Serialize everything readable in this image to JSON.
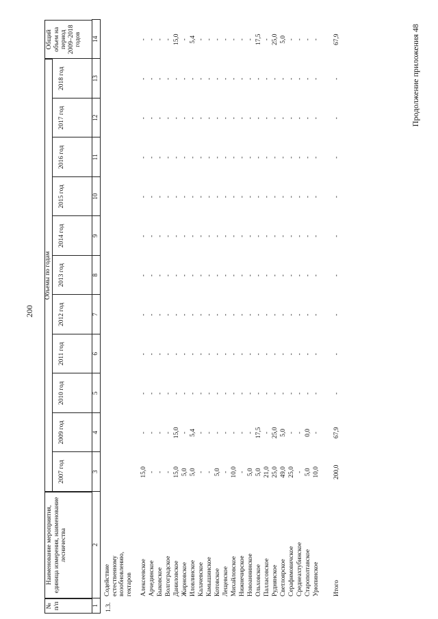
{
  "page_number": "200",
  "caption": "Продолжение приложения 48",
  "table": {
    "header": {
      "no": "№ п/п",
      "name": "Наименование мероприятия, единица измерения, наименование лесничества",
      "group": "Объемы по годам",
      "years": [
        "2007 год",
        "2009 год",
        "2010 год",
        "2011 год",
        "2012 год",
        "2013 год",
        "2014 год",
        "2015 год",
        "2016 год",
        "2017 год",
        "2018 год"
      ],
      "total": "Общий объем на период 2009–2018 годов"
    },
    "column_numbers": [
      "1",
      "2",
      "3",
      "4",
      "5",
      "6",
      "7",
      "8",
      "9",
      "10",
      "11",
      "12",
      "13",
      "14"
    ],
    "section": {
      "no": "1.3.",
      "name": "Содействие естественному возобновлению, гектаров"
    },
    "rows": [
      {
        "name": "Алексеевское",
        "cells": [
          "15,0",
          "-",
          "-",
          "-",
          "-",
          "-",
          "-",
          "-",
          "-",
          "-",
          "-",
          "-"
        ]
      },
      {
        "name": "Арчединское",
        "cells": [
          "-",
          "-",
          "-",
          "-",
          "-",
          "-",
          "-",
          "-",
          "-",
          "-",
          "-",
          "-"
        ]
      },
      {
        "name": "Быковское",
        "cells": [
          "-",
          "-",
          "-",
          "-",
          "-",
          "-",
          "-",
          "-",
          "-",
          "-",
          "-",
          "-"
        ]
      },
      {
        "name": "Волгоградское",
        "cells": [
          "-",
          "-",
          "-",
          "-",
          "-",
          "-",
          "-",
          "-",
          "-",
          "-",
          "-",
          "-"
        ]
      },
      {
        "name": "Даниловское",
        "cells": [
          "15,0",
          "15,0",
          "-",
          "-",
          "-",
          "-",
          "-",
          "-",
          "-",
          "-",
          "-",
          "15,0"
        ]
      },
      {
        "name": "Жирновское",
        "cells": [
          "5,0",
          "-",
          "-",
          "-",
          "-",
          "-",
          "-",
          "-",
          "-",
          "-",
          "-",
          "-"
        ]
      },
      {
        "name": "Иловлинское",
        "cells": [
          "5,0",
          "5,4",
          "-",
          "-",
          "-",
          "-",
          "-",
          "-",
          "-",
          "-",
          "-",
          "5,4"
        ]
      },
      {
        "name": "Калачевское",
        "cells": [
          "-",
          "-",
          "-",
          "-",
          "-",
          "-",
          "-",
          "-",
          "-",
          "-",
          "-",
          "-"
        ]
      },
      {
        "name": "Камышинское",
        "cells": [
          "-",
          "-",
          "-",
          "-",
          "-",
          "-",
          "-",
          "-",
          "-",
          "-",
          "-",
          "-"
        ]
      },
      {
        "name": "Котовское",
        "cells": [
          "5,0",
          "-",
          "-",
          "-",
          "-",
          "-",
          "-",
          "-",
          "-",
          "-",
          "-",
          "-"
        ]
      },
      {
        "name": "Лещевское",
        "cells": [
          "-",
          "-",
          "-",
          "-",
          "-",
          "-",
          "-",
          "-",
          "-",
          "-",
          "-",
          "-"
        ]
      },
      {
        "name": "Михайловское",
        "cells": [
          "10,0",
          "-",
          "-",
          "-",
          "-",
          "-",
          "-",
          "-",
          "-",
          "-",
          "-",
          "-"
        ]
      },
      {
        "name": "Нижнечирское",
        "cells": [
          "-",
          "-",
          "-",
          "-",
          "-",
          "-",
          "-",
          "-",
          "-",
          "-",
          "-",
          "-"
        ]
      },
      {
        "name": "Новоаннинское",
        "cells": [
          "5,0",
          "-",
          "-",
          "-",
          "-",
          "-",
          "-",
          "-",
          "-",
          "-",
          "-",
          "-"
        ]
      },
      {
        "name": "Ольховское",
        "cells": [
          "5,0",
          "17,5",
          "-",
          "-",
          "-",
          "-",
          "-",
          "-",
          "-",
          "-",
          "-",
          "17,5"
        ]
      },
      {
        "name": "Палласовское",
        "cells": [
          "21,0",
          "-",
          "-",
          "-",
          "-",
          "-",
          "-",
          "-",
          "-",
          "-",
          "-",
          "-"
        ]
      },
      {
        "name": "Руднянское",
        "cells": [
          "25,0",
          "25,0",
          "-",
          "-",
          "-",
          "-",
          "-",
          "-",
          "-",
          "-",
          "-",
          "25,0"
        ]
      },
      {
        "name": "Светлоярское",
        "cells": [
          "49,0",
          "5,0",
          "-",
          "-",
          "-",
          "-",
          "-",
          "-",
          "-",
          "-",
          "-",
          "5,0"
        ]
      },
      {
        "name": "Серафимовичское",
        "cells": [
          "25,0",
          "-",
          "-",
          "-",
          "-",
          "-",
          "-",
          "-",
          "-",
          "-",
          "-",
          "-"
        ]
      },
      {
        "name": "Среднеахтубинское",
        "cells": [
          "-",
          "-",
          "-",
          "-",
          "-",
          "-",
          "-",
          "-",
          "-",
          "-",
          "-",
          "-"
        ]
      },
      {
        "name": "Старополтавское",
        "cells": [
          "5,0",
          "0,0",
          "-",
          "-",
          "-",
          "-",
          "-",
          "-",
          "-",
          "-",
          "-",
          "-"
        ]
      },
      {
        "name": "Урюпинское",
        "cells": [
          "10,0",
          "-",
          "-",
          "-",
          "-",
          "-",
          "-",
          "-",
          "-",
          "-",
          "-",
          "-"
        ]
      }
    ],
    "total": {
      "name": "Итого",
      "cells": [
        "200,0",
        "67,9",
        "-",
        "-",
        "-",
        "-",
        "-",
        "-",
        "-",
        "-",
        "-",
        "67,9"
      ]
    }
  }
}
